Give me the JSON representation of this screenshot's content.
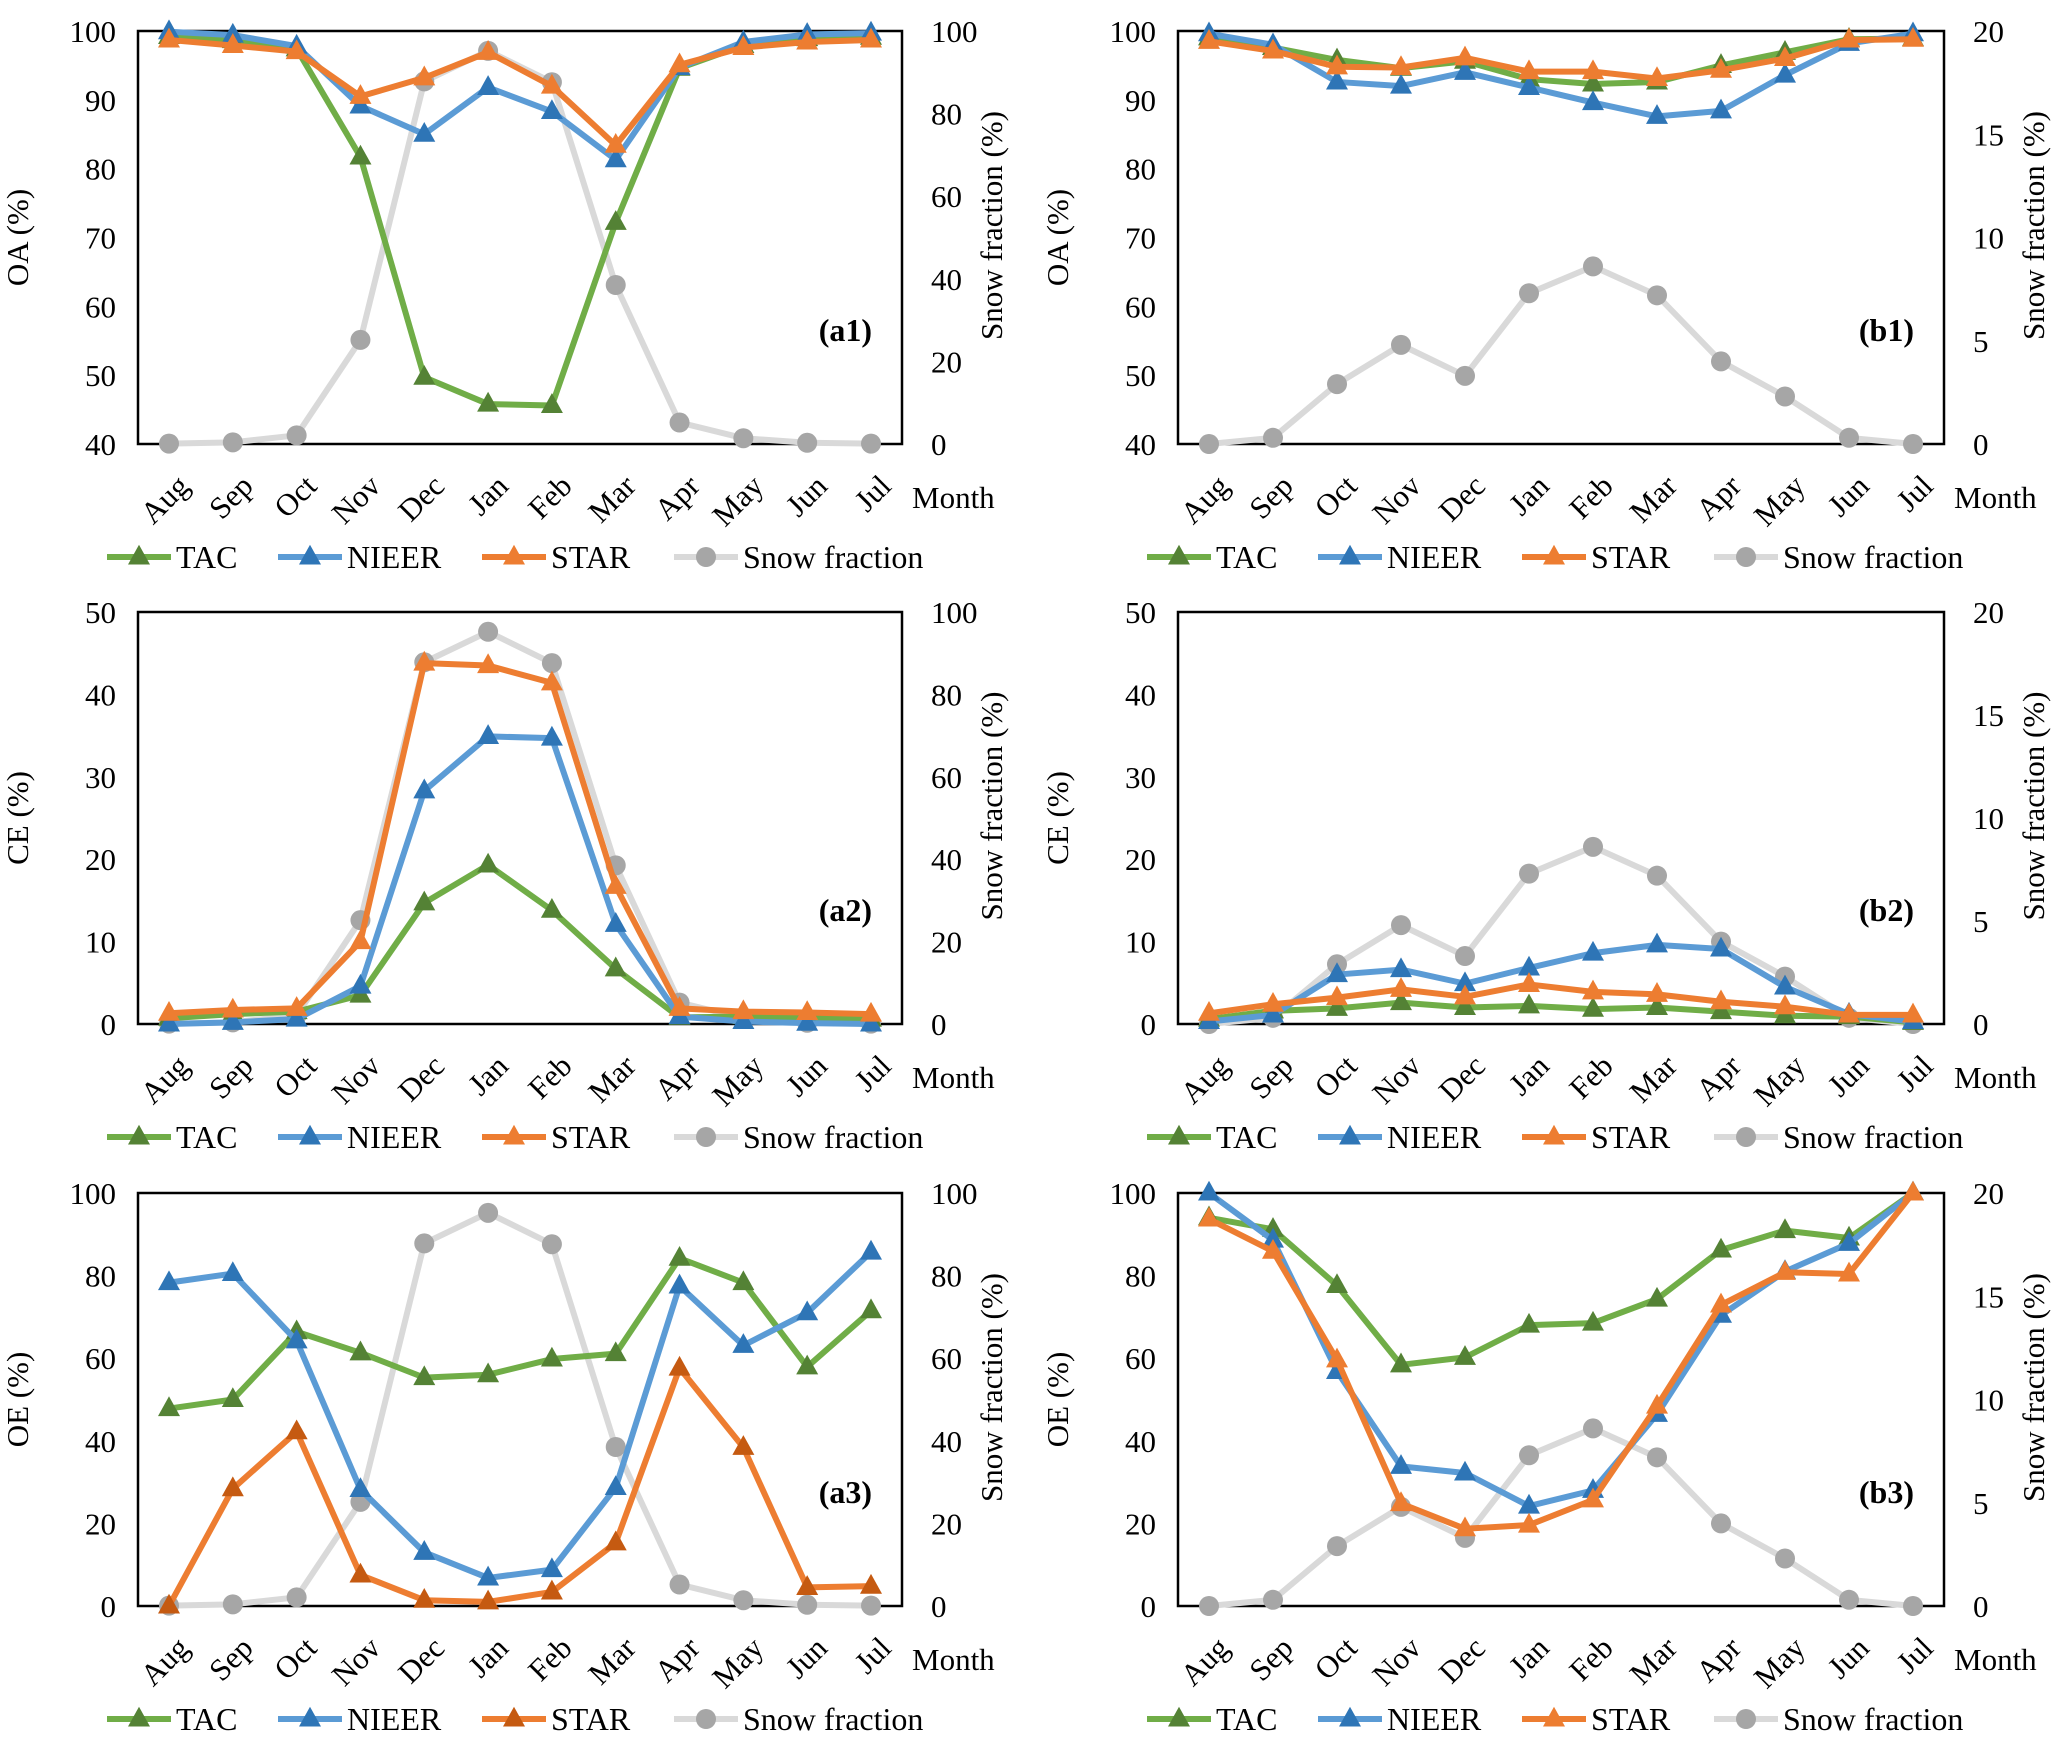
{
  "figure": {
    "x_label": "Month",
    "months": [
      "Aug",
      "Sep",
      "Oct",
      "Nov",
      "Dec",
      "Jan",
      "Feb",
      "Mar",
      "Apr",
      "May",
      "Jun",
      "Jul"
    ],
    "legend": [
      "TAC",
      "NIEER",
      "STAR",
      "Snow fraction"
    ],
    "colors": {
      "TAC_line": "#70ad47",
      "TAC_marker": "#548235",
      "NIEER_line": "#5b9bd5",
      "NIEER_marker": "#2e75b6",
      "STAR_line": "#ed7d31",
      "STAR_marker": "#ed7d31",
      "STAR_marker_a3": "#c55a11",
      "Snow_line": "#d9d9d9",
      "Snow_marker": "#a6a6a6"
    }
  },
  "chart_data": [
    {
      "id": "a1",
      "type": "line",
      "panel_label": "(a1)",
      "ylabel": "OA (%)",
      "ylim": [
        40,
        100
      ],
      "yticks": [
        40,
        50,
        60,
        70,
        80,
        90,
        100
      ],
      "y2label": "Snow fraction (%)",
      "y2lim": [
        0,
        100
      ],
      "y2ticks": [
        0,
        20,
        40,
        60,
        80,
        100
      ],
      "xlabel": "Month",
      "categories": [
        "Aug",
        "Sep",
        "Oct",
        "Nov",
        "Dec",
        "Jan",
        "Feb",
        "Mar",
        "Apr",
        "May",
        "Jun",
        "Jul"
      ],
      "series": [
        {
          "name": "TAC",
          "axis": "left",
          "values": [
            99.2,
            98.6,
            97.4,
            81.7,
            49.7,
            45.8,
            45.6,
            72.2,
            94.6,
            97.9,
            98.9,
            99.1
          ]
        },
        {
          "name": "NIEER",
          "axis": "left",
          "values": [
            99.9,
            99.4,
            97.8,
            89.1,
            85.0,
            91.8,
            88.3,
            81.3,
            94.7,
            98.4,
            99.5,
            99.7
          ]
        },
        {
          "name": "STAR",
          "axis": "left",
          "values": [
            98.7,
            97.9,
            97.0,
            90.5,
            93.2,
            96.9,
            92.0,
            83.4,
            95.1,
            97.6,
            98.4,
            98.7
          ]
        },
        {
          "name": "Snow fraction",
          "axis": "right",
          "values": [
            0.1,
            0.4,
            2.1,
            25.2,
            87.8,
            95.2,
            87.6,
            38.5,
            5.2,
            1.4,
            0.3,
            0.1
          ]
        }
      ],
      "legend_position": "bottom"
    },
    {
      "id": "b1",
      "type": "line",
      "panel_label": "(b1)",
      "ylabel": "OA (%)",
      "ylim": [
        40,
        100
      ],
      "yticks": [
        40,
        50,
        60,
        70,
        80,
        90,
        100
      ],
      "y2label": "Snow fraction (%)",
      "y2lim": [
        0,
        20
      ],
      "y2ticks": [
        0,
        5,
        10,
        15,
        20
      ],
      "xlabel": "Month",
      "categories": [
        "Aug",
        "Sep",
        "Oct",
        "Nov",
        "Dec",
        "Jan",
        "Feb",
        "Mar",
        "Apr",
        "May",
        "Jun",
        "Jul"
      ],
      "series": [
        {
          "name": "TAC",
          "axis": "left",
          "values": [
            99.0,
            97.6,
            95.8,
            94.6,
            95.6,
            93.0,
            92.3,
            92.6,
            95.0,
            96.9,
            98.8,
            98.9
          ]
        },
        {
          "name": "NIEER",
          "axis": "left",
          "values": [
            99.6,
            98.0,
            92.6,
            92.0,
            94.0,
            91.8,
            89.6,
            87.6,
            88.4,
            93.6,
            98.2,
            99.6
          ]
        },
        {
          "name": "STAR",
          "axis": "left",
          "values": [
            98.5,
            97.1,
            94.8,
            94.7,
            96.1,
            94.1,
            94.1,
            93.1,
            94.3,
            96.0,
            98.7,
            98.8
          ]
        },
        {
          "name": "Snow fraction",
          "axis": "right",
          "values": [
            0.0,
            0.3,
            2.9,
            4.8,
            3.3,
            7.3,
            8.6,
            7.2,
            4.0,
            2.3,
            0.3,
            0.0
          ]
        }
      ],
      "legend_position": "bottom"
    },
    {
      "id": "a2",
      "type": "line",
      "panel_label": "(a2)",
      "ylabel": "CE (%)",
      "ylim": [
        0,
        50
      ],
      "yticks": [
        0,
        10,
        20,
        30,
        40,
        50
      ],
      "y2label": "Snow fraction (%)",
      "y2lim": [
        0,
        100
      ],
      "y2ticks": [
        0,
        20,
        40,
        60,
        80,
        100
      ],
      "xlabel": "Month",
      "categories": [
        "Aug",
        "Sep",
        "Oct",
        "Nov",
        "Dec",
        "Jan",
        "Feb",
        "Mar",
        "Apr",
        "May",
        "Jun",
        "Jul"
      ],
      "series": [
        {
          "name": "TAC",
          "axis": "left",
          "values": [
            0.7,
            1.2,
            1.5,
            3.5,
            14.7,
            19.3,
            13.8,
            6.7,
            0.8,
            0.9,
            0.8,
            0.6
          ]
        },
        {
          "name": "NIEER",
          "axis": "left",
          "values": [
            0.0,
            0.2,
            0.6,
            4.6,
            28.3,
            34.9,
            34.7,
            12.1,
            0.9,
            0.3,
            0.1,
            0.0
          ]
        },
        {
          "name": "STAR",
          "axis": "left",
          "values": [
            1.3,
            1.7,
            1.9,
            10.0,
            43.8,
            43.5,
            41.4,
            16.7,
            1.9,
            1.5,
            1.4,
            1.2
          ]
        },
        {
          "name": "Snow fraction",
          "axis": "right",
          "values": [
            0.1,
            0.4,
            2.1,
            25.2,
            87.8,
            95.2,
            87.6,
            38.5,
            5.2,
            1.4,
            0.3,
            0.1
          ]
        }
      ],
      "legend_position": "bottom"
    },
    {
      "id": "b2",
      "type": "line",
      "panel_label": "(b2)",
      "ylabel": "CE (%)",
      "ylim": [
        0,
        50
      ],
      "yticks": [
        0,
        10,
        20,
        30,
        40,
        50
      ],
      "y2label": "Snow fraction (%)",
      "y2lim": [
        0,
        20
      ],
      "y2ticks": [
        0,
        5,
        10,
        15,
        20
      ],
      "xlabel": "Month",
      "categories": [
        "Aug",
        "Sep",
        "Oct",
        "Nov",
        "Dec",
        "Jan",
        "Feb",
        "Mar",
        "Apr",
        "May",
        "Jun",
        "Jul"
      ],
      "series": [
        {
          "name": "TAC",
          "axis": "left",
          "values": [
            0.6,
            1.6,
            1.9,
            2.6,
            2.0,
            2.2,
            1.8,
            2.0,
            1.5,
            1.0,
            0.9,
            0.2
          ]
        },
        {
          "name": "NIEER",
          "axis": "left",
          "values": [
            0.3,
            1.1,
            6.0,
            6.6,
            4.9,
            6.8,
            8.6,
            9.6,
            9.1,
            4.5,
            1.2,
            0.3
          ]
        },
        {
          "name": "STAR",
          "axis": "left",
          "values": [
            1.3,
            2.4,
            3.2,
            4.2,
            3.3,
            4.8,
            3.9,
            3.6,
            2.7,
            2.1,
            1.1,
            1.1
          ]
        },
        {
          "name": "Snow fraction",
          "axis": "right",
          "values": [
            0.0,
            0.3,
            2.9,
            4.8,
            3.3,
            7.3,
            8.6,
            7.2,
            4.0,
            2.3,
            0.3,
            0.0
          ]
        }
      ],
      "legend_position": "bottom"
    },
    {
      "id": "a3",
      "type": "line",
      "panel_label": "(a3)",
      "ylabel": "OE (%)",
      "ylim": [
        0,
        100
      ],
      "yticks": [
        0,
        20,
        40,
        60,
        80,
        100
      ],
      "y2label": "Snow fraction (%)",
      "y2lim": [
        0,
        100
      ],
      "y2ticks": [
        0,
        20,
        40,
        60,
        80,
        100
      ],
      "xlabel": "Month",
      "categories": [
        "Aug",
        "Sep",
        "Oct",
        "Nov",
        "Dec",
        "Jan",
        "Feb",
        "Mar",
        "Apr",
        "May",
        "Jun",
        "Jul"
      ],
      "series": [
        {
          "name": "TAC",
          "axis": "left",
          "values": [
            47.8,
            50.0,
            66.4,
            61.3,
            55.3,
            56.0,
            59.8,
            61.1,
            84.2,
            78.3,
            57.9,
            71.5
          ]
        },
        {
          "name": "NIEER",
          "axis": "left",
          "values": [
            78.3,
            80.5,
            64.2,
            28.2,
            13.0,
            6.8,
            8.8,
            28.7,
            77.5,
            63.1,
            71.0,
            85.7
          ]
        },
        {
          "name": "STAR",
          "axis": "left",
          "values": [
            0.0,
            28.4,
            42.2,
            7.5,
            1.4,
            1.0,
            3.4,
            15.3,
            57.6,
            38.4,
            4.5,
            4.8
          ]
        },
        {
          "name": "Snow fraction",
          "axis": "right",
          "values": [
            0.1,
            0.4,
            2.1,
            25.2,
            87.8,
            95.2,
            87.6,
            38.5,
            5.2,
            1.4,
            0.3,
            0.1
          ]
        }
      ],
      "legend_position": "bottom"
    },
    {
      "id": "b3",
      "type": "line",
      "panel_label": "(b3)",
      "ylabel": "OE (%)",
      "ylim": [
        0,
        100
      ],
      "yticks": [
        0,
        20,
        40,
        60,
        80,
        100
      ],
      "y2label": "Snow fraction (%)",
      "y2lim": [
        0,
        20
      ],
      "y2ticks": [
        0,
        5,
        10,
        15,
        20
      ],
      "xlabel": "Month",
      "categories": [
        "Aug",
        "Sep",
        "Oct",
        "Nov",
        "Dec",
        "Jan",
        "Feb",
        "Mar",
        "Apr",
        "May",
        "Jun",
        "Jul"
      ],
      "series": [
        {
          "name": "TAC",
          "axis": "left",
          "values": [
            94.0,
            91.2,
            77.6,
            58.4,
            60.2,
            68.0,
            68.5,
            74.3,
            86.2,
            90.9,
            89.1,
            100.0
          ]
        },
        {
          "name": "NIEER",
          "axis": "left",
          "values": [
            100.0,
            88.6,
            56.8,
            33.8,
            32.2,
            24.2,
            28.0,
            46.4,
            70.4,
            81.0,
            87.8,
            100.0
          ]
        },
        {
          "name": "STAR",
          "axis": "left",
          "values": [
            93.7,
            85.9,
            59.6,
            24.8,
            18.7,
            19.6,
            25.7,
            48.4,
            72.9,
            80.8,
            80.4,
            100.0
          ]
        },
        {
          "name": "Snow fraction",
          "axis": "right",
          "values": [
            0.0,
            0.3,
            2.9,
            4.8,
            3.3,
            7.3,
            8.6,
            7.2,
            4.0,
            2.3,
            0.3,
            0.0
          ]
        }
      ],
      "legend_position": "bottom"
    }
  ]
}
